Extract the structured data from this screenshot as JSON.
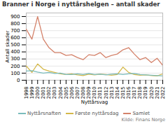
{
  "chart_data": {
    "type": "line",
    "title": "Branner i Norge i nyttårshelgen – antall skader",
    "xlabel": "Nyttårsvag",
    "ylabel": "Antall skader",
    "annotations": [
      "Kilde: Finans Norge"
    ],
    "x": [
      1998,
      1999,
      2000,
      2001,
      2002,
      2003,
      2004,
      2005,
      2006,
      2007,
      2008,
      2009,
      2010,
      2011,
      2012,
      2013,
      2014,
      2015,
      2016,
      2017,
      2018,
      2019,
      2020,
      2021,
      2022
    ],
    "series": [
      {
        "name": "Nyttårsnaften",
        "color": "#7bbcbc",
        "values": [
          130,
          135,
          115,
          100,
          110,
          95,
          100,
          80,
          80,
          90,
          80,
          95,
          80,
          85,
          75,
          85,
          90,
          80,
          90,
          95,
          80,
          75,
          70,
          65,
          60
        ]
      },
      {
        "name": "Første nyttårsdag",
        "color": "#d4b84a",
        "values": [
          200,
          110,
          230,
          155,
          130,
          110,
          90,
          80,
          90,
          75,
          65,
          85,
          75,
          85,
          80,
          70,
          80,
          185,
          110,
          80,
          70,
          75,
          65,
          60,
          90
        ]
      },
      {
        "name": "Samlet",
        "color": "#d4826a",
        "values": [
          720,
          580,
          900,
          580,
          460,
          390,
          390,
          350,
          360,
          320,
          290,
          360,
          350,
          390,
          320,
          350,
          370,
          430,
          460,
          370,
          290,
          320,
          250,
          310,
          210
        ]
      }
    ],
    "xlim": [
      1998,
      2022
    ],
    "xticks": [
      1998,
      1999,
      2000,
      2001,
      2002,
      2003,
      2004,
      2005,
      2006,
      2007,
      2008,
      2009,
      2010,
      2011,
      2012,
      2013,
      2014,
      2015,
      2016,
      2017,
      2018,
      2019,
      2020,
      2021,
      2022
    ],
    "ylim": [
      0,
      950
    ],
    "yticks": [
      0,
      100,
      200,
      300,
      400,
      500,
      600,
      700,
      800,
      900
    ],
    "grid": true,
    "legend": "bottom"
  }
}
